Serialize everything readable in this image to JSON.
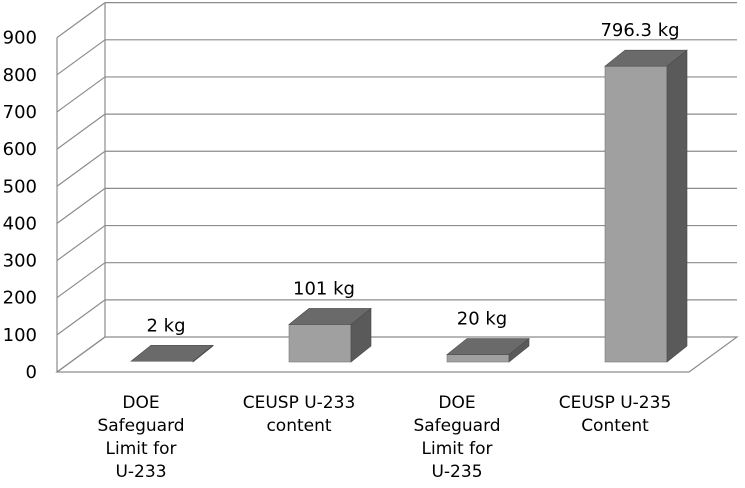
{
  "chart_data": {
    "type": "bar",
    "three_d": true,
    "categories": [
      [
        "DOE",
        "Safeguard",
        "Limit for",
        "U-233"
      ],
      [
        "CEUSP U-233",
        "content"
      ],
      [
        "DOE",
        "Safeguard",
        "Limit for",
        "U-235"
      ],
      [
        "CEUSP U-235",
        "Content"
      ]
    ],
    "values": [
      2,
      101,
      20,
      796.3
    ],
    "data_labels": [
      "2 kg",
      "101 kg",
      "20 kg",
      "796.3 kg"
    ],
    "yticks": [
      0,
      100,
      200,
      300,
      400,
      500,
      600,
      700,
      800,
      900
    ],
    "ylim": [
      0,
      900
    ],
    "grid": true,
    "title": "",
    "xlabel": "",
    "ylabel": "",
    "colors": {
      "front": "#a0a0a0",
      "top": "#6a6a6a",
      "side": "#5a5a5a",
      "grid": "#8c8c8c"
    }
  }
}
